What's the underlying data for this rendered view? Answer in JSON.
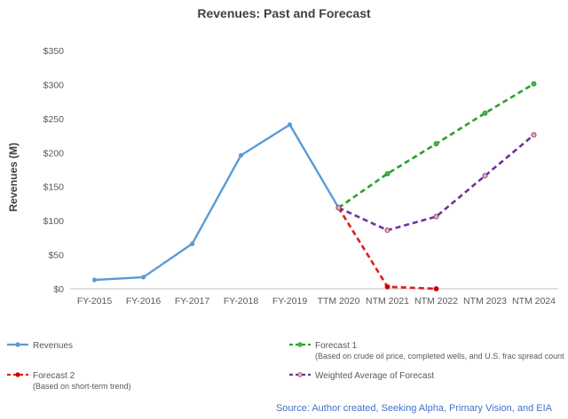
{
  "chart_data": {
    "type": "line",
    "title": "Revenues: Past and Forecast",
    "xlabel": "",
    "ylabel": "Revenues (M)",
    "categories": [
      "FY-2015",
      "FY-2016",
      "FY-2017",
      "FY-2018",
      "FY-2019",
      "TTM 2020",
      "NTM 2021",
      "NTM 2022",
      "NTM 2023",
      "NTM 2024"
    ],
    "ylim": [
      0,
      350
    ],
    "yticks": [
      0,
      50,
      100,
      150,
      200,
      250,
      300,
      350
    ],
    "ytick_labels": [
      "$0",
      "$50",
      "$100",
      "$150",
      "$200",
      "$250",
      "$300",
      "$350"
    ],
    "grid": false,
    "legend_position": "bottom",
    "series": [
      {
        "name": "Revenues",
        "style": "solid",
        "color": "#5B9BD5",
        "marker_color": "#5B9BD5",
        "values": [
          13,
          17,
          66,
          196,
          241,
          119,
          null,
          null,
          null,
          null
        ]
      },
      {
        "name": "Forecast 1",
        "note": "(Based on crude oil price, completed wells, and U.S. frac spread count",
        "style": "dashed",
        "color": "#2CA02C",
        "marker_color": "#4CAF50",
        "values": [
          null,
          null,
          null,
          null,
          null,
          119,
          169,
          213,
          258,
          301
        ]
      },
      {
        "name": "Forecast 2",
        "note": "(Based on short-term trend)",
        "style": "dashed",
        "color": "#E31A1C",
        "marker_color": "#C00000",
        "values": [
          null,
          null,
          null,
          null,
          null,
          119,
          3,
          0,
          null,
          null
        ]
      },
      {
        "name": "Weighted Average of Forecast",
        "note": "",
        "style": "dashed",
        "color": "#7030A0",
        "marker_color": "#F4B183",
        "values": [
          null,
          null,
          null,
          null,
          null,
          119,
          86,
          106,
          166,
          226
        ]
      }
    ],
    "source": "Source: Author created, Seeking Alpha, Primary Vision, and EIA"
  }
}
